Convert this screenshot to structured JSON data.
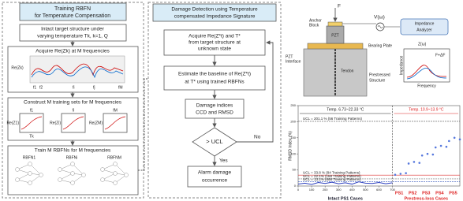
{
  "left_panel": {
    "title": [
      "Training RBFN",
      "for Temperature Compensation"
    ],
    "steps": [
      {
        "lines": [
          "Intact target structure under",
          "varying temperature Tk, k=1, Q"
        ]
      },
      {
        "lines": [
          "Acquire Re(Zk) at M frequencies"
        ],
        "axis": "Re(Zk)",
        "freqs": [
          "f1",
          "f2",
          "fi",
          "fj",
          "fM"
        ]
      },
      {
        "lines": [
          "Construct M training sets for M frequencies"
        ],
        "freqs": [
          "f1",
          "fi",
          "fM"
        ],
        "ylabels": [
          "Re(Z1)",
          "Re(Zi)",
          "Re(ZM)"
        ],
        "xlabel": "Tk"
      },
      {
        "lines": [
          "Train M RBFNs for M frequencies"
        ],
        "nets": [
          "RBFN1",
          "RBFNi",
          "RBFNM"
        ]
      }
    ]
  },
  "middle_panel": {
    "title": [
      "Damage Detection using Temperature",
      "compensated Impedance Signature"
    ],
    "steps": [
      {
        "lines": [
          "Acquire Re(Z*t) and T*",
          "from target structure at",
          "unknown state"
        ]
      },
      {
        "lines": [
          "Estimate the baseline of Re(Z*t)",
          "at T* using trained RBFNs"
        ]
      },
      {
        "lines": [
          "Damage indices",
          "CCD and RMSD"
        ]
      },
      {
        "lines": [
          "> UCL"
        ]
      },
      {
        "lines": [
          "Alarm damage",
          "occurrence"
        ]
      }
    ],
    "no": "No",
    "yes": "Yes"
  },
  "schematic": {
    "force": "F",
    "anchor": [
      "Anchor",
      "Block"
    ],
    "pzt": "PZT",
    "pzt_interface": [
      "PZT",
      "Interface"
    ],
    "voltage": "V(ω)",
    "analyzer": [
      "Impedance",
      "Analyzer"
    ],
    "bearing": "Bearing Plate",
    "tendon": "Tendon",
    "structure": [
      "Prestressed",
      "Structure"
    ],
    "z": "Z(ω)",
    "load": "F+ΔF",
    "inset_y": "Impedance",
    "inset_x": "Frequency"
  },
  "chart_data": {
    "type": "line",
    "ylabel": "RMSD Index (%)",
    "xlim": [
      0,
      1200
    ],
    "xticks": [
      0,
      100,
      200,
      300,
      400,
      500,
      600,
      700
    ],
    "ylim": [
      0,
      250
    ],
    "yticks": [
      0,
      50,
      100,
      150,
      200,
      250
    ],
    "regions": [
      {
        "label": "Temp. 6.73~22.33 °C",
        "case_label": "Intact PS1 Cases"
      },
      {
        "label": "Temp. 10.9~13.9 °C",
        "case_label": "Prestress-loss Cases"
      }
    ],
    "boundary": 700,
    "cases": [
      "PS1",
      "PS2",
      "PS3",
      "PS4",
      "PS5"
    ],
    "ucl": [
      {
        "value": 201.1,
        "label": "UCL = 201.1 % (56 Training Patterns)"
      },
      {
        "value": 33.8,
        "label": "UCL = 33.8 % (84 Training Patterns)"
      },
      {
        "value": 22.1,
        "label": "UCL = 22.1% (168 Training Patterns)"
      },
      {
        "value": 13.1,
        "label": "UCL = 13.1% (668 Training Patterns)"
      }
    ],
    "series": [
      {
        "name": "Intact",
        "color": "#2b3fbf",
        "x": [
          0,
          50,
          100,
          150,
          200,
          250,
          300,
          350,
          400,
          450,
          500,
          550,
          600,
          650,
          700
        ],
        "values": [
          6,
          9,
          5,
          11,
          8,
          12,
          7,
          10,
          6,
          13,
          9,
          8,
          11,
          7,
          10
        ]
      },
      {
        "name": "Prestress-loss",
        "color": "#5577dd",
        "x": [
          720,
          760,
          800,
          820,
          860,
          900,
          920,
          960,
          1000,
          1020,
          1060,
          1100,
          1120,
          1160,
          1200
        ],
        "values": [
          35,
          38,
          40,
          70,
          75,
          72,
          95,
          100,
          98,
          120,
          125,
          122,
          140,
          150,
          145
        ]
      }
    ]
  }
}
